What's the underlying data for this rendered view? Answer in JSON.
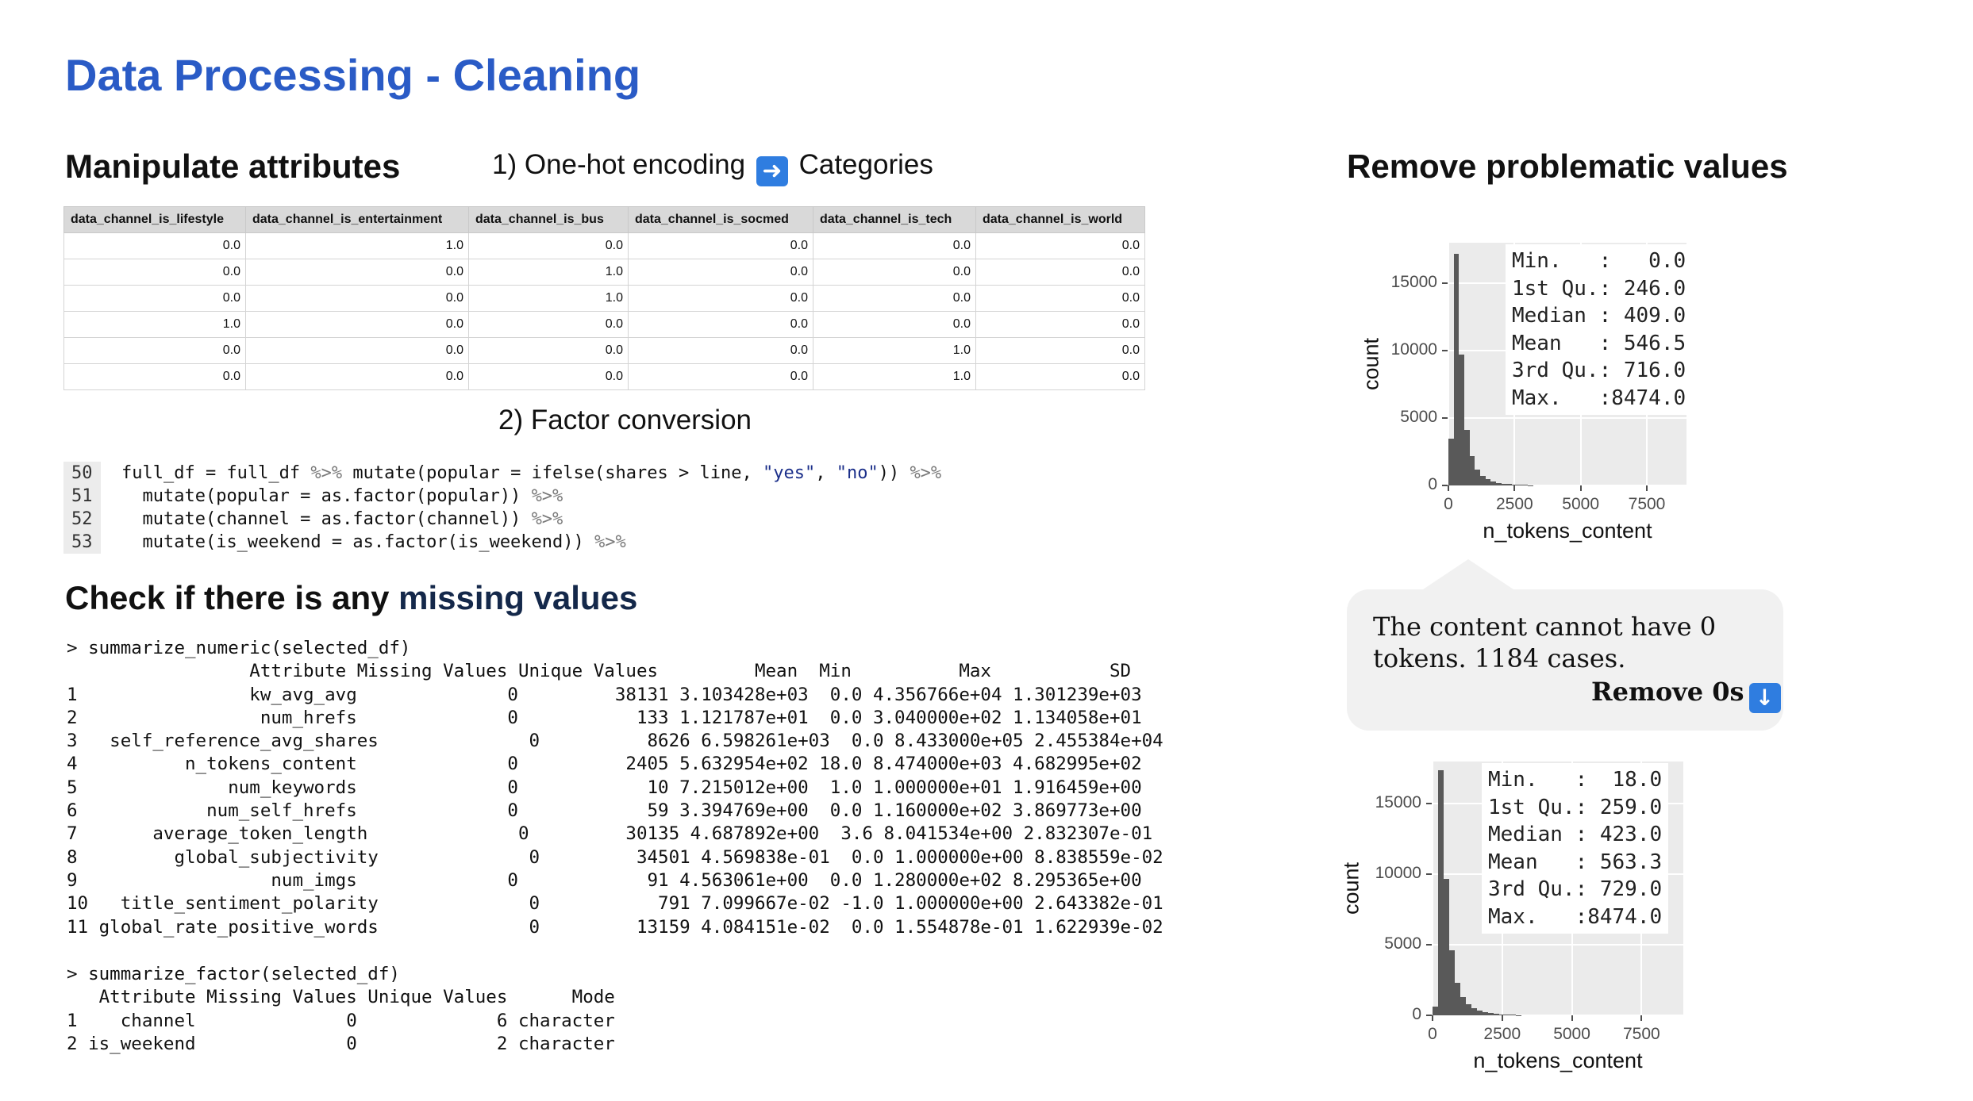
{
  "page": {
    "title": "Data Processing - Cleaning"
  },
  "manipulate": {
    "heading": "Manipulate attributes",
    "step1": "1) One-hot encoding",
    "step1_icon": "right-arrow-emoji",
    "step1_suffix": "Categories",
    "step2": "2) Factor conversion",
    "table": {
      "columns": [
        "data_channel_is_lifestyle",
        "data_channel_is_entertainment",
        "data_channel_is_bus",
        "data_channel_is_socmed",
        "data_channel_is_tech",
        "data_channel_is_world"
      ],
      "rows": [
        [
          "0.0",
          "1.0",
          "0.0",
          "0.0",
          "0.0",
          "0.0"
        ],
        [
          "0.0",
          "0.0",
          "1.0",
          "0.0",
          "0.0",
          "0.0"
        ],
        [
          "0.0",
          "0.0",
          "1.0",
          "0.0",
          "0.0",
          "0.0"
        ],
        [
          "1.0",
          "0.0",
          "0.0",
          "0.0",
          "0.0",
          "0.0"
        ],
        [
          "0.0",
          "0.0",
          "0.0",
          "0.0",
          "1.0",
          "0.0"
        ],
        [
          "0.0",
          "0.0",
          "0.0",
          "0.0",
          "1.0",
          "0.0"
        ]
      ]
    },
    "code": [
      {
        "line": "50",
        "text": "full_df = full_df %>% mutate(popular = ifelse(shares > line, \"yes\", \"no\")) %>%"
      },
      {
        "line": "51",
        "text": "  mutate(popular = as.factor(popular)) %>%"
      },
      {
        "line": "52",
        "text": "  mutate(channel = as.factor(channel)) %>%"
      },
      {
        "line": "53",
        "text": "  mutate(is_weekend = as.factor(is_weekend)) %>%"
      }
    ]
  },
  "missing": {
    "heading_prefix": "Check if there is any ",
    "heading_highlight": "missing values",
    "numeric_command": "> summarize_numeric(selected_df)",
    "numeric_header": "                 Attribute Missing Values Unique Values         Mean  Min          Max           SD",
    "numeric_rows": [
      "1                kw_avg_avg              0         38131 3.103428e+03  0.0 4.356766e+04 1.301239e+03",
      "2                 num_hrefs              0           133 1.121787e+01  0.0 3.040000e+02 1.134058e+01",
      "3   self_reference_avg_shares              0          8626 6.598261e+03  0.0 8.433000e+05 2.455384e+04",
      "4          n_tokens_content              0          2405 5.632954e+02 18.0 8.474000e+03 4.682995e+02",
      "5              num_keywords              0            10 7.215012e+00  1.0 1.000000e+01 1.916459e+00",
      "6            num_self_hrefs              0            59 3.394769e+00  0.0 1.160000e+02 3.869773e+00",
      "7       average_token_length              0         30135 4.687892e+00  3.6 8.041534e+00 2.832307e-01",
      "8         global_subjectivity              0         34501 4.569838e-01  0.0 1.000000e+00 8.838559e-02",
      "9                  num_imgs              0            91 4.563061e+00  0.0 1.280000e+02 8.295365e+00",
      "10   title_sentiment_polarity              0           791 7.099667e-02 -1.0 1.000000e+00 2.643382e-01",
      "11 global_rate_positive_words              0         13159 4.084151e-02  0.0 1.554878e-01 1.622939e-02"
    ],
    "factor_command": "> summarize_factor(selected_df)",
    "factor_header": "   Attribute Missing Values Unique Values      Mode",
    "factor_rows": [
      "1    channel              0             6 character",
      "2 is_weekend              0             2 character"
    ]
  },
  "remove": {
    "heading": "Remove problematic values",
    "bubble_text": "The content cannot have 0 tokens. 1184 cases.",
    "bubble_action": "Remove 0s",
    "bubble_icon": "down-arrow-emoji"
  },
  "chart_data": [
    {
      "type": "histogram",
      "xlabel": "n_tokens_content",
      "ylabel": "count",
      "x_ticks": [
        "0",
        "2500",
        "5000",
        "7500"
      ],
      "y_ticks": [
        "0",
        "5000",
        "10000",
        "15000"
      ],
      "xlim": [
        0,
        9000
      ],
      "ylim": [
        0,
        18000
      ],
      "bin_width": 200,
      "bins_x_start": [
        0,
        200,
        400,
        600,
        800,
        1000,
        1200,
        1400,
        1600,
        1800,
        2000,
        2200,
        2400,
        2600,
        2800,
        3000
      ],
      "counts": [
        3500,
        17200,
        9700,
        4100,
        2200,
        1200,
        700,
        450,
        300,
        200,
        140,
        100,
        70,
        50,
        35,
        25
      ],
      "summary": [
        "Min.   :   0.0",
        "1st Qu.: 246.0",
        "Median : 409.0",
        "Mean   : 546.5",
        "3rd Qu.: 716.0",
        "Max.   :8474.0"
      ]
    },
    {
      "type": "histogram",
      "xlabel": "n_tokens_content",
      "ylabel": "count",
      "x_ticks": [
        "0",
        "2500",
        "5000",
        "7500"
      ],
      "y_ticks": [
        "0",
        "5000",
        "10000",
        "15000"
      ],
      "xlim": [
        0,
        9000
      ],
      "ylim": [
        0,
        18000
      ],
      "bin_width": 200,
      "bins_x_start": [
        0,
        200,
        400,
        600,
        800,
        1000,
        1200,
        1400,
        1600,
        1800,
        2000,
        2200,
        2400,
        2600,
        2800,
        3000
      ],
      "counts": [
        600,
        17400,
        9700,
        4600,
        2300,
        1300,
        800,
        500,
        330,
        220,
        150,
        100,
        75,
        55,
        35,
        25
      ],
      "summary": [
        "Min.   :  18.0",
        "1st Qu.: 259.0",
        "Median : 423.0",
        "Mean   : 563.3",
        "3rd Qu.: 729.0",
        "Max.   :8474.0"
      ]
    }
  ]
}
